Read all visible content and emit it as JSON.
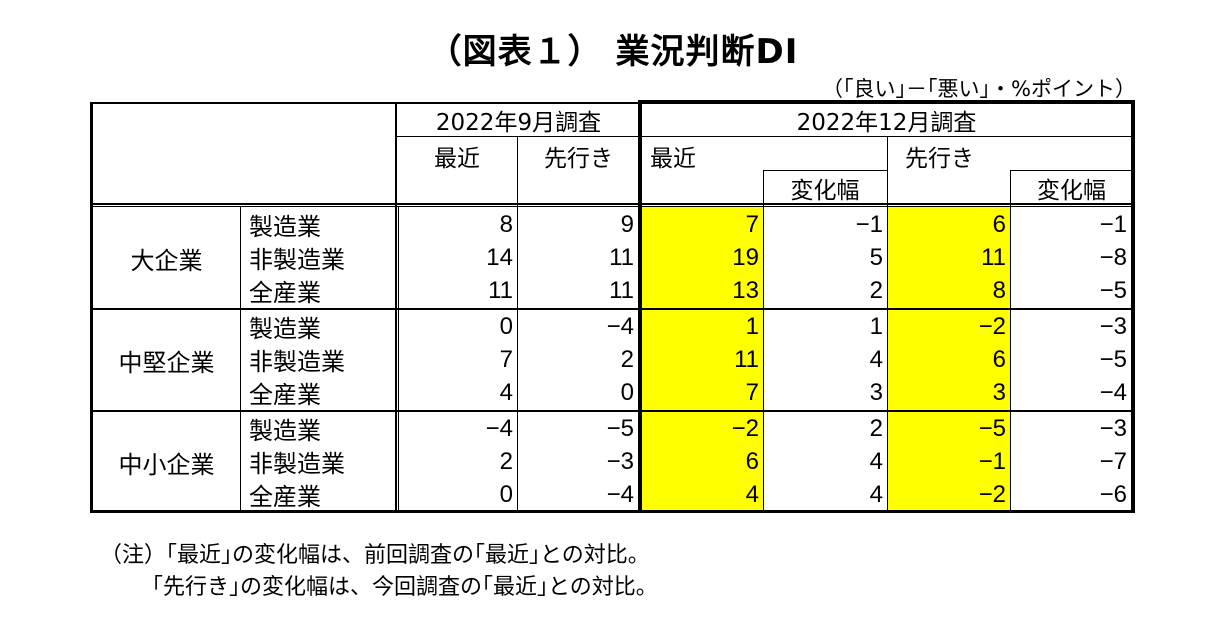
{
  "title": "（図表１） 業況判断DI",
  "unit_note": "（｢良い｣－｢悪い｣・%ポイント）",
  "header": {
    "survey_sep": "2022年9月調査",
    "survey_dec": "2022年12月調査",
    "recent": "最近",
    "outlook": "先行き",
    "change": "変化幅"
  },
  "groups": [
    {
      "name": "大企業",
      "rows": [
        {
          "industry": "製造業",
          "sep_recent": "8",
          "sep_outlook": "9",
          "dec_recent": "7",
          "dec_recent_change": "−1",
          "dec_outlook": "6",
          "dec_outlook_change": "−1"
        },
        {
          "industry": "非製造業",
          "sep_recent": "14",
          "sep_outlook": "11",
          "dec_recent": "19",
          "dec_recent_change": "5",
          "dec_outlook": "11",
          "dec_outlook_change": "−8"
        },
        {
          "industry": "全産業",
          "sep_recent": "11",
          "sep_outlook": "11",
          "dec_recent": "13",
          "dec_recent_change": "2",
          "dec_outlook": "8",
          "dec_outlook_change": "−5"
        }
      ]
    },
    {
      "name": "中堅企業",
      "rows": [
        {
          "industry": "製造業",
          "sep_recent": "0",
          "sep_outlook": "−4",
          "dec_recent": "1",
          "dec_recent_change": "1",
          "dec_outlook": "−2",
          "dec_outlook_change": "−3"
        },
        {
          "industry": "非製造業",
          "sep_recent": "7",
          "sep_outlook": "2",
          "dec_recent": "11",
          "dec_recent_change": "4",
          "dec_outlook": "6",
          "dec_outlook_change": "−5"
        },
        {
          "industry": "全産業",
          "sep_recent": "4",
          "sep_outlook": "0",
          "dec_recent": "7",
          "dec_recent_change": "3",
          "dec_outlook": "3",
          "dec_outlook_change": "−4"
        }
      ]
    },
    {
      "name": "中小企業",
      "rows": [
        {
          "industry": "製造業",
          "sep_recent": "−4",
          "sep_outlook": "−5",
          "dec_recent": "−2",
          "dec_recent_change": "2",
          "dec_outlook": "−5",
          "dec_outlook_change": "−3"
        },
        {
          "industry": "非製造業",
          "sep_recent": "2",
          "sep_outlook": "−3",
          "dec_recent": "6",
          "dec_recent_change": "4",
          "dec_outlook": "−1",
          "dec_outlook_change": "−7"
        },
        {
          "industry": "全産業",
          "sep_recent": "0",
          "sep_outlook": "−4",
          "dec_recent": "4",
          "dec_recent_change": "4",
          "dec_outlook": "−2",
          "dec_outlook_change": "−6"
        }
      ]
    }
  ],
  "notes": [
    "（注）｢最近｣の変化幅は、前回調査の｢最近｣との対比。",
    "｢先行き｣の変化幅は、今回調査の｢最近｣との対比。"
  ],
  "colors": {
    "highlight": "#ffff00",
    "border": "#000000"
  }
}
